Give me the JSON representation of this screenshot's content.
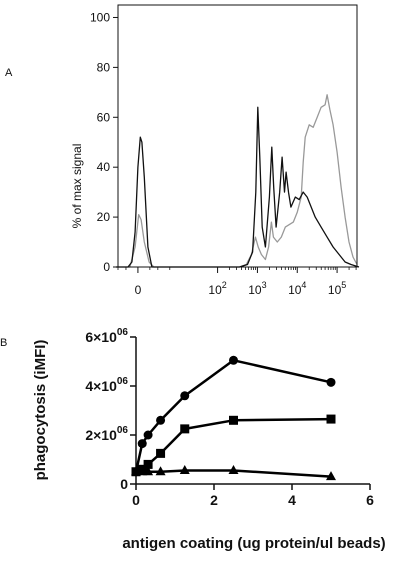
{
  "panel_letters": [
    "A",
    "B"
  ],
  "chart_data": [
    {
      "type": "line",
      "panel": "A",
      "title": "",
      "xlabel": "",
      "ylabel": "% of max signal",
      "xscale": "log",
      "xlim": [
        -0.5,
        5.5
      ],
      "ylim": [
        0,
        105
      ],
      "y_ticks": [
        "0",
        "20",
        "40",
        "60",
        "80",
        "100"
      ],
      "x_ticks": [
        {
          "pos": 0,
          "base": "0",
          "exp": ""
        },
        {
          "pos": 2,
          "base": "10",
          "exp": "2"
        },
        {
          "pos": 3,
          "base": "10",
          "exp": "3"
        },
        {
          "pos": 4,
          "base": "10",
          "exp": "4"
        },
        {
          "pos": 5,
          "base": "10",
          "exp": "5"
        }
      ],
      "grid": false,
      "series": [
        {
          "color": "#111111",
          "points": [
            [
              -0.55,
              0
            ],
            [
              -0.25,
              0
            ],
            [
              -0.15,
              2
            ],
            [
              -0.07,
              14
            ],
            [
              0,
              40
            ],
            [
              0.06,
              52
            ],
            [
              0.1,
              50
            ],
            [
              0.16,
              36
            ],
            [
              0.25,
              8
            ],
            [
              0.35,
              0
            ],
            [
              0.6,
              0
            ],
            [
              2.55,
              0
            ],
            [
              2.75,
              1
            ],
            [
              2.88,
              6
            ],
            [
              2.96,
              30
            ],
            [
              3.01,
              64
            ],
            [
              3.06,
              44
            ],
            [
              3.12,
              16
            ],
            [
              3.2,
              8
            ],
            [
              3.3,
              28
            ],
            [
              3.36,
              48
            ],
            [
              3.41,
              32
            ],
            [
              3.47,
              16
            ],
            [
              3.56,
              30
            ],
            [
              3.62,
              44
            ],
            [
              3.68,
              30
            ],
            [
              3.72,
              38
            ],
            [
              3.78,
              30
            ],
            [
              3.84,
              24
            ],
            [
              3.95,
              28
            ],
            [
              4.05,
              27
            ],
            [
              4.15,
              30
            ],
            [
              4.25,
              28
            ],
            [
              4.35,
              24
            ],
            [
              4.45,
              20
            ],
            [
              4.6,
              16
            ],
            [
              4.75,
              12
            ],
            [
              4.9,
              8
            ],
            [
              5.05,
              5
            ],
            [
              5.2,
              2
            ],
            [
              5.35,
              1
            ],
            [
              5.55,
              0
            ]
          ]
        },
        {
          "color": "#999999",
          "points": [
            [
              -0.55,
              0
            ],
            [
              -0.2,
              0
            ],
            [
              -0.07,
              8
            ],
            [
              0.02,
              21
            ],
            [
              0.08,
              19
            ],
            [
              0.16,
              10
            ],
            [
              0.28,
              2
            ],
            [
              0.4,
              0
            ],
            [
              2.55,
              0
            ],
            [
              2.72,
              1
            ],
            [
              2.85,
              5
            ],
            [
              2.95,
              12
            ],
            [
              3.02,
              8
            ],
            [
              3.1,
              5
            ],
            [
              3.2,
              3
            ],
            [
              3.28,
              8
            ],
            [
              3.35,
              18
            ],
            [
              3.4,
              12
            ],
            [
              3.5,
              10
            ],
            [
              3.6,
              12
            ],
            [
              3.7,
              16
            ],
            [
              3.8,
              17
            ],
            [
              3.9,
              18
            ],
            [
              4,
              22
            ],
            [
              4.1,
              28
            ],
            [
              4.15,
              42
            ],
            [
              4.2,
              52
            ],
            [
              4.3,
              57
            ],
            [
              4.4,
              56
            ],
            [
              4.5,
              60
            ],
            [
              4.6,
              64
            ],
            [
              4.7,
              65
            ],
            [
              4.75,
              69
            ],
            [
              4.82,
              63
            ],
            [
              4.9,
              57
            ],
            [
              5,
              46
            ],
            [
              5.1,
              32
            ],
            [
              5.2,
              20
            ],
            [
              5.3,
              10
            ],
            [
              5.4,
              4
            ],
            [
              5.5,
              1
            ]
          ]
        }
      ]
    },
    {
      "type": "line",
      "panel": "B",
      "title": "",
      "xlabel": "antigen coating (ug protein/ul beads)",
      "ylabel": "phagocytosis (iMFI)",
      "xlim": [
        0,
        6
      ],
      "ylim": [
        0,
        6000000
      ],
      "x_ticks": [
        "0",
        "2",
        "4",
        "6"
      ],
      "y_ticks": [
        {
          "value": 0,
          "text": "0",
          "exp": ""
        },
        {
          "value": 2000000,
          "text": "2×10",
          "exp": "06"
        },
        {
          "value": 4000000,
          "text": "4×10",
          "exp": "06"
        },
        {
          "value": 6000000,
          "text": "6×10",
          "exp": "06"
        }
      ],
      "grid": false,
      "series": [
        {
          "marker": "circle",
          "x": [
            0,
            0.16,
            0.31,
            0.63,
            1.25,
            2.5,
            5
          ],
          "y": [
            500000,
            1650000,
            2000000,
            2600000,
            3600000,
            5050000,
            4150000
          ]
        },
        {
          "marker": "square",
          "x": [
            0,
            0.16,
            0.31,
            0.63,
            1.25,
            2.5,
            5
          ],
          "y": [
            500000,
            600000,
            800000,
            1250000,
            2250000,
            2600000,
            2650000
          ]
        },
        {
          "marker": "triangle",
          "x": [
            0,
            0.16,
            0.31,
            0.63,
            1.25,
            2.5,
            5
          ],
          "y": [
            500000,
            500000,
            500000,
            500000,
            550000,
            550000,
            300000
          ]
        }
      ]
    }
  ]
}
